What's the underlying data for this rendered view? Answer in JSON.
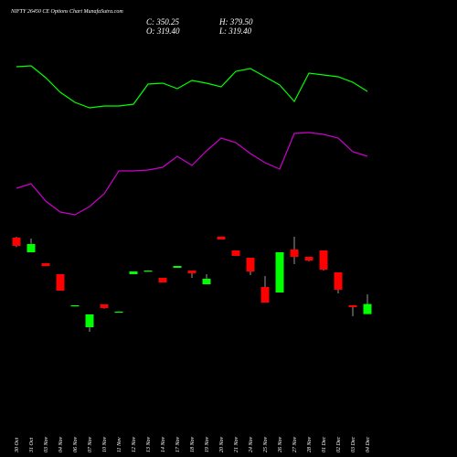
{
  "chart_data": {
    "type": "candlestick",
    "title": "NIFTY 26450 CE Options Chart MunafaSutra.com",
    "ohlc_labels": [
      "C: 350.25",
      "H: 379.50",
      "O: 319.40",
      "L: 319.40"
    ],
    "categories": [
      "30 Oct",
      "31 Oct",
      "03 Nov",
      "04 Nov",
      "06 Nov",
      "07 Nov",
      "10 Nov",
      "11 Nov",
      "12 Nov",
      "13 Nov",
      "14 Nov",
      "17 Nov",
      "18 Nov",
      "19 Nov",
      "20 Nov",
      "21 Nov",
      "24 Nov",
      "25 Nov",
      "26 Nov",
      "27 Nov",
      "28 Nov",
      "01 Dec",
      "02 Dec",
      "03 Dec",
      "04 Dec"
    ],
    "open": [
      553.6,
      508.8,
      475.2,
      441.6,
      346.4,
      279.2,
      349.2,
      326.8,
      441.6,
      452.8,
      430.4,
      461.2,
      452.8,
      410.8,
      556.4,
      514.4,
      492,
      402.4,
      385.6,
      517.2,
      494.8,
      514.4,
      447.2,
      346.4,
      319.4
    ],
    "high": [
      556,
      550.8,
      476,
      441.6,
      347,
      318.4,
      349.2,
      327.5,
      450,
      453.5,
      430.4,
      466.8,
      452.8,
      441.6,
      556.4,
      514.4,
      492,
      436,
      508.8,
      556.4,
      494.8,
      514.4,
      447.2,
      346.4,
      379.5
    ],
    "low": [
      525,
      508.8,
      466,
      391.2,
      346,
      265.2,
      336,
      326.8,
      441.6,
      452.8,
      416.4,
      461.2,
      430.4,
      410.8,
      548,
      497.6,
      438.8,
      354.8,
      385.6,
      472.4,
      481,
      452.8,
      382.8,
      312.8,
      319.4
    ],
    "close": [
      528.4,
      534,
      466.8,
      391.2,
      346.4,
      318.4,
      338,
      326.8,
      450,
      452.8,
      416.4,
      466.8,
      444.4,
      427.6,
      548,
      497.6,
      450,
      354.8,
      508.8,
      494.8,
      483.6,
      455.6,
      394,
      340.8,
      350.25
    ],
    "ylim": [
      240,
      590
    ],
    "up_color": "#00ff00",
    "down_color": "#ff0000",
    "lines": [
      {
        "color": "#00ff00",
        "values": [
          177,
          178,
          165,
          149,
          138,
          132,
          134,
          134,
          136,
          158,
          159,
          153,
          162,
          159,
          155,
          172,
          175,
          166,
          157,
          139,
          170,
          168,
          166,
          160,
          150
        ]
      },
      {
        "color": "#cc00cc",
        "values": [
          44,
          49,
          30,
          18,
          15,
          24,
          38,
          63,
          63,
          64,
          67,
          79,
          69,
          85,
          99,
          94,
          82,
          72,
          65,
          104,
          105,
          103,
          99,
          84,
          79
        ]
      }
    ],
    "lines_ylim": [
      0,
      210
    ]
  }
}
